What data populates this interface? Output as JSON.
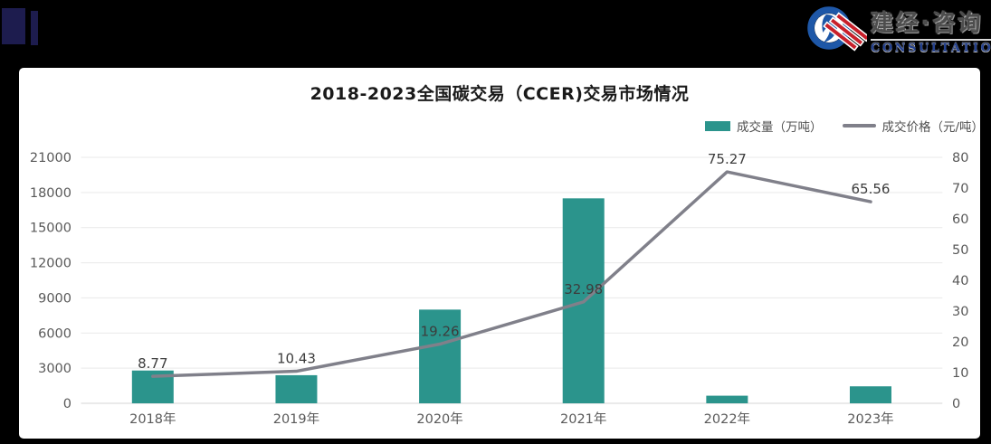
{
  "page": {
    "background": "#000000",
    "panel_background": "#ffffff"
  },
  "header": {
    "decor_square_color": "#1d1c4e",
    "logo": {
      "cn": "建经·咨询",
      "en": "CONSULTATION",
      "icon": "circle-swoosh-logo-icon",
      "colors": {
        "circle_blue": "#1e57a7",
        "stripe_red": "#c8202b",
        "en_navy": "#24418f"
      }
    }
  },
  "chart_data": {
    "type": "combo_bar_line",
    "title": "2018-2023全国碳交易（CCER)交易市场情况",
    "categories": [
      "2018年",
      "2019年",
      "2020年",
      "2021年",
      "2022年",
      "2023年"
    ],
    "series": [
      {
        "name": "成交量（万吨）",
        "type": "bar",
        "axis": "left",
        "values": [
          2800,
          2400,
          8000,
          17500,
          650,
          1450
        ]
      },
      {
        "name": "成交价格（元/吨）",
        "type": "line",
        "axis": "right",
        "values": [
          8.77,
          10.43,
          19.26,
          32.98,
          75.27,
          65.56
        ],
        "point_labels": [
          "8.77",
          "10.43",
          "19.26",
          "32.98",
          "75.27",
          "65.56"
        ]
      }
    ],
    "left_axis": {
      "min": 0,
      "max": 21000,
      "step": 3000,
      "tick_labels": [
        "0",
        "3000",
        "6000",
        "9000",
        "12000",
        "15000",
        "18000",
        "21000"
      ]
    },
    "right_axis": {
      "min": 0,
      "max": 80,
      "step": 10,
      "tick_labels": [
        "0",
        "10",
        "20",
        "30",
        "40",
        "50",
        "60",
        "70",
        "80"
      ]
    },
    "grid": "horizontal-only",
    "legend_position": "top-right",
    "colors": {
      "bar": "#2b948c",
      "line": "#80808a",
      "grid": "#e9e9e9",
      "axis_line": "#d6d6d6",
      "tick_text": "#595959",
      "point_label_text": "#3c3c3c"
    }
  }
}
